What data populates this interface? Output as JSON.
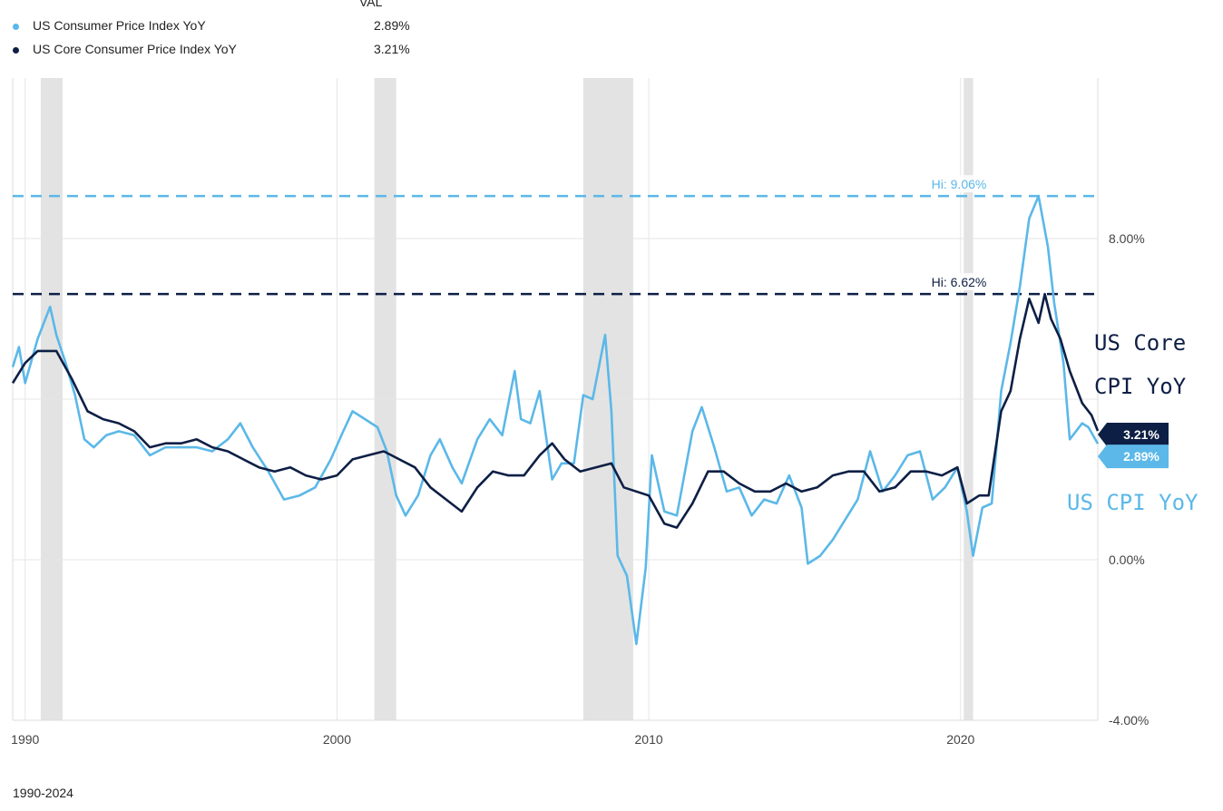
{
  "legend": {
    "header": "VAL",
    "items": [
      {
        "name": "US Consumer Price Index YoY",
        "value": "2.89%",
        "color": "#5bb8e8"
      },
      {
        "name": "US Core Consumer Price Index YoY",
        "value": "3.21%",
        "color": "#0e1f45"
      }
    ]
  },
  "footer": "1990-2024",
  "annotations": {
    "core_line1": "US Core",
    "core_line2": "CPI YoY",
    "cpi": "US CPI YoY"
  },
  "chart_data": {
    "type": "line",
    "xlim": [
      1989.6,
      2024.4
    ],
    "ylim": [
      -4,
      12
    ],
    "x_ticks": [
      {
        "value": 1990,
        "label": "1990"
      },
      {
        "value": 2000,
        "label": "2000"
      },
      {
        "value": 2010,
        "label": "2010"
      },
      {
        "value": 2020,
        "label": "2020"
      }
    ],
    "y_ticks": [
      {
        "value": 8,
        "label": "8.00%"
      },
      {
        "value": 0,
        "label": "0.00%"
      },
      {
        "value": -4,
        "label": "-4.00%"
      }
    ],
    "gridlines_y": [
      -4,
      0,
      4,
      8
    ],
    "gridlines_x": [
      1990,
      2000,
      2010,
      2020
    ],
    "recessions": [
      [
        1990.5,
        1991.2
      ],
      [
        2001.2,
        2001.9
      ],
      [
        2007.9,
        2009.5
      ],
      [
        2020.1,
        2020.4
      ]
    ],
    "reference_lines": [
      {
        "value": 9.06,
        "label": "Hi: 9.06%",
        "color": "#5bb8e8"
      },
      {
        "value": 6.62,
        "label": "Hi: 6.62%",
        "color": "#0e1f45"
      }
    ],
    "end_labels": [
      {
        "value": 3.21,
        "label": "3.21%",
        "color": "#0e1f45"
      },
      {
        "value": 2.89,
        "label": "2.89%",
        "color": "#5bb8e8"
      }
    ],
    "series": [
      {
        "name": "US Consumer Price Index YoY",
        "color": "#5bb8e8",
        "points": [
          [
            1989.6,
            4.8
          ],
          [
            1989.8,
            5.3
          ],
          [
            1990.0,
            4.4
          ],
          [
            1990.4,
            5.5
          ],
          [
            1990.8,
            6.3
          ],
          [
            1991.0,
            5.6
          ],
          [
            1991.3,
            4.9
          ],
          [
            1991.6,
            4.1
          ],
          [
            1991.9,
            3.0
          ],
          [
            1992.2,
            2.8
          ],
          [
            1992.6,
            3.1
          ],
          [
            1993.0,
            3.2
          ],
          [
            1993.5,
            3.1
          ],
          [
            1994.0,
            2.6
          ],
          [
            1994.5,
            2.8
          ],
          [
            1995.0,
            2.8
          ],
          [
            1995.5,
            2.8
          ],
          [
            1996.0,
            2.7
          ],
          [
            1996.5,
            3.0
          ],
          [
            1996.9,
            3.4
          ],
          [
            1997.3,
            2.8
          ],
          [
            1997.8,
            2.2
          ],
          [
            1998.3,
            1.5
          ],
          [
            1998.8,
            1.6
          ],
          [
            1999.3,
            1.8
          ],
          [
            1999.8,
            2.5
          ],
          [
            2000.2,
            3.2
          ],
          [
            2000.5,
            3.7
          ],
          [
            2000.9,
            3.5
          ],
          [
            2001.3,
            3.3
          ],
          [
            2001.6,
            2.7
          ],
          [
            2001.9,
            1.6
          ],
          [
            2002.2,
            1.1
          ],
          [
            2002.6,
            1.6
          ],
          [
            2003.0,
            2.6
          ],
          [
            2003.3,
            3.0
          ],
          [
            2003.7,
            2.3
          ],
          [
            2004.0,
            1.9
          ],
          [
            2004.5,
            3.0
          ],
          [
            2004.9,
            3.5
          ],
          [
            2005.3,
            3.1
          ],
          [
            2005.7,
            4.7
          ],
          [
            2005.9,
            3.5
          ],
          [
            2006.2,
            3.4
          ],
          [
            2006.5,
            4.2
          ],
          [
            2006.9,
            2.0
          ],
          [
            2007.2,
            2.4
          ],
          [
            2007.6,
            2.4
          ],
          [
            2007.9,
            4.1
          ],
          [
            2008.2,
            4.0
          ],
          [
            2008.6,
            5.6
          ],
          [
            2008.8,
            3.7
          ],
          [
            2009.0,
            0.1
          ],
          [
            2009.3,
            -0.4
          ],
          [
            2009.6,
            -2.1
          ],
          [
            2009.9,
            -0.2
          ],
          [
            2010.1,
            2.6
          ],
          [
            2010.5,
            1.2
          ],
          [
            2010.9,
            1.1
          ],
          [
            2011.4,
            3.2
          ],
          [
            2011.7,
            3.8
          ],
          [
            2012.1,
            2.8
          ],
          [
            2012.5,
            1.7
          ],
          [
            2012.9,
            1.8
          ],
          [
            2013.3,
            1.1
          ],
          [
            2013.7,
            1.5
          ],
          [
            2014.1,
            1.4
          ],
          [
            2014.5,
            2.1
          ],
          [
            2014.9,
            1.3
          ],
          [
            2015.1,
            -0.1
          ],
          [
            2015.5,
            0.1
          ],
          [
            2015.9,
            0.5
          ],
          [
            2016.3,
            1.0
          ],
          [
            2016.7,
            1.5
          ],
          [
            2017.1,
            2.7
          ],
          [
            2017.5,
            1.7
          ],
          [
            2017.9,
            2.1
          ],
          [
            2018.3,
            2.6
          ],
          [
            2018.7,
            2.7
          ],
          [
            2019.1,
            1.5
          ],
          [
            2019.5,
            1.8
          ],
          [
            2019.9,
            2.3
          ],
          [
            2020.2,
            1.2
          ],
          [
            2020.4,
            0.1
          ],
          [
            2020.7,
            1.3
          ],
          [
            2021.0,
            1.4
          ],
          [
            2021.3,
            4.2
          ],
          [
            2021.6,
            5.4
          ],
          [
            2021.9,
            6.8
          ],
          [
            2022.2,
            8.5
          ],
          [
            2022.5,
            9.06
          ],
          [
            2022.8,
            7.8
          ],
          [
            2023.0,
            6.4
          ],
          [
            2023.3,
            4.9
          ],
          [
            2023.5,
            3.0
          ],
          [
            2023.9,
            3.4
          ],
          [
            2024.1,
            3.3
          ],
          [
            2024.4,
            2.89
          ]
        ]
      },
      {
        "name": "US Core Consumer Price Index YoY",
        "color": "#0e1f45",
        "points": [
          [
            1989.6,
            4.4
          ],
          [
            1990.0,
            4.9
          ],
          [
            1990.4,
            5.2
          ],
          [
            1991.0,
            5.2
          ],
          [
            1991.5,
            4.5
          ],
          [
            1992.0,
            3.7
          ],
          [
            1992.5,
            3.5
          ],
          [
            1993.0,
            3.4
          ],
          [
            1993.5,
            3.2
          ],
          [
            1994.0,
            2.8
          ],
          [
            1994.5,
            2.9
          ],
          [
            1995.0,
            2.9
          ],
          [
            1995.5,
            3.0
          ],
          [
            1996.0,
            2.8
          ],
          [
            1996.5,
            2.7
          ],
          [
            1997.0,
            2.5
          ],
          [
            1997.5,
            2.3
          ],
          [
            1998.0,
            2.2
          ],
          [
            1998.5,
            2.3
          ],
          [
            1999.0,
            2.1
          ],
          [
            1999.5,
            2.0
          ],
          [
            2000.0,
            2.1
          ],
          [
            2000.5,
            2.5
          ],
          [
            2001.0,
            2.6
          ],
          [
            2001.5,
            2.7
          ],
          [
            2002.0,
            2.5
          ],
          [
            2002.5,
            2.3
          ],
          [
            2003.0,
            1.8
          ],
          [
            2003.5,
            1.5
          ],
          [
            2004.0,
            1.2
          ],
          [
            2004.5,
            1.8
          ],
          [
            2005.0,
            2.2
          ],
          [
            2005.5,
            2.1
          ],
          [
            2006.0,
            2.1
          ],
          [
            2006.5,
            2.6
          ],
          [
            2006.9,
            2.9
          ],
          [
            2007.3,
            2.5
          ],
          [
            2007.8,
            2.2
          ],
          [
            2008.3,
            2.3
          ],
          [
            2008.8,
            2.4
          ],
          [
            2009.2,
            1.8
          ],
          [
            2009.6,
            1.7
          ],
          [
            2010.0,
            1.6
          ],
          [
            2010.5,
            0.9
          ],
          [
            2010.9,
            0.8
          ],
          [
            2011.4,
            1.4
          ],
          [
            2011.9,
            2.2
          ],
          [
            2012.4,
            2.2
          ],
          [
            2012.9,
            1.9
          ],
          [
            2013.4,
            1.7
          ],
          [
            2013.9,
            1.7
          ],
          [
            2014.4,
            1.9
          ],
          [
            2014.9,
            1.7
          ],
          [
            2015.4,
            1.8
          ],
          [
            2015.9,
            2.1
          ],
          [
            2016.4,
            2.2
          ],
          [
            2016.9,
            2.2
          ],
          [
            2017.4,
            1.7
          ],
          [
            2017.9,
            1.8
          ],
          [
            2018.4,
            2.2
          ],
          [
            2018.9,
            2.2
          ],
          [
            2019.4,
            2.1
          ],
          [
            2019.9,
            2.3
          ],
          [
            2020.2,
            1.4
          ],
          [
            2020.6,
            1.6
          ],
          [
            2020.9,
            1.6
          ],
          [
            2021.3,
            3.7
          ],
          [
            2021.6,
            4.2
          ],
          [
            2021.9,
            5.5
          ],
          [
            2022.2,
            6.5
          ],
          [
            2022.5,
            5.9
          ],
          [
            2022.7,
            6.62
          ],
          [
            2022.9,
            6.0
          ],
          [
            2023.2,
            5.5
          ],
          [
            2023.5,
            4.7
          ],
          [
            2023.9,
            3.9
          ],
          [
            2024.2,
            3.6
          ],
          [
            2024.4,
            3.21
          ]
        ]
      }
    ]
  }
}
